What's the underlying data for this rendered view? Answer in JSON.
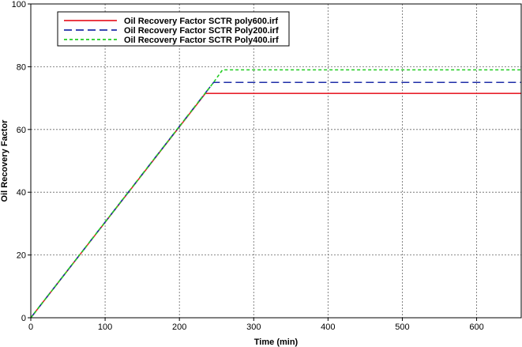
{
  "chart_data": {
    "type": "line",
    "title": "",
    "xlabel": "Time (min)",
    "ylabel": "Oil Recovery Factor",
    "xlim": [
      0,
      660
    ],
    "ylim": [
      0,
      100
    ],
    "xticks": [
      0,
      100,
      200,
      300,
      400,
      500,
      600
    ],
    "yticks": [
      0,
      20,
      40,
      60,
      80,
      100
    ],
    "grid": true,
    "legend_position": "top-left",
    "series": [
      {
        "name": "Oil Recovery Factor SCTR poly600.irf",
        "color": "#e8212b",
        "dash": "solid",
        "x": [
          0,
          235,
          660
        ],
        "y": [
          0,
          71.5,
          71.5
        ]
      },
      {
        "name": "Oil Recovery Factor SCTR Poly200.irf",
        "color": "#1f2fa8",
        "dash": "dashed",
        "x": [
          0,
          246,
          660
        ],
        "y": [
          0,
          75,
          75
        ]
      },
      {
        "name": "Oil Recovery Factor SCTR Poly400.irf",
        "color": "#22cc22",
        "dash": "dotted",
        "x": [
          0,
          246,
          258,
          660
        ],
        "y": [
          0,
          75,
          79,
          79
        ]
      }
    ]
  }
}
